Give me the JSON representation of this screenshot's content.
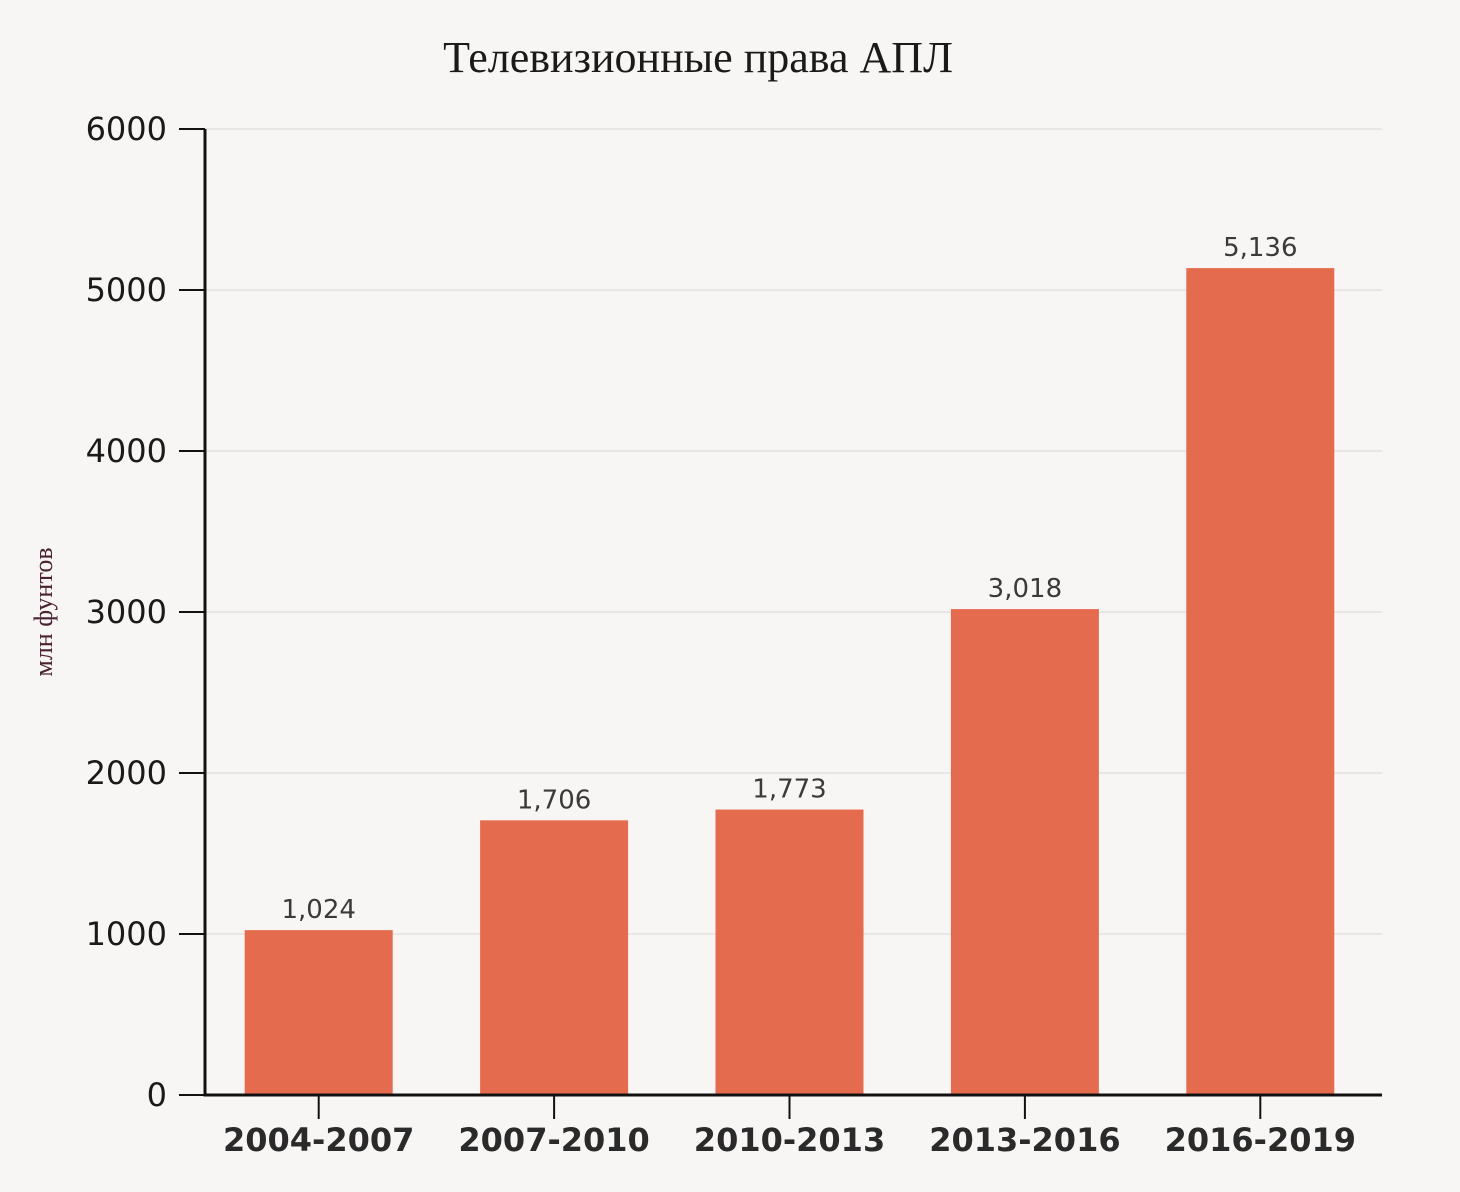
{
  "chart_data": {
    "type": "bar",
    "title": "Телевизионные права АПЛ",
    "ylabel": "млн фунтов",
    "xlabel": "",
    "categories": [
      "2004-2007",
      "2007-2010",
      "2010-2013",
      "2013-2016",
      "2016-2019"
    ],
    "values": [
      1024,
      1706,
      1773,
      3018,
      5136
    ],
    "value_labels": [
      "1,024",
      "1,706",
      "1,773",
      "3,018",
      "5,136"
    ],
    "ylim": [
      0,
      6000
    ],
    "yticks": [
      0,
      1000,
      2000,
      3000,
      4000,
      5000,
      6000
    ],
    "ytick_labels": [
      "0",
      "1000",
      "2000",
      "3000",
      "4000",
      "5000",
      "6000"
    ],
    "grid": true,
    "legend": "none",
    "colors": {
      "bar": "#e56b4e",
      "background": "#f8f6f4",
      "axis": "#111111",
      "grid": "#e9e6e3"
    }
  }
}
